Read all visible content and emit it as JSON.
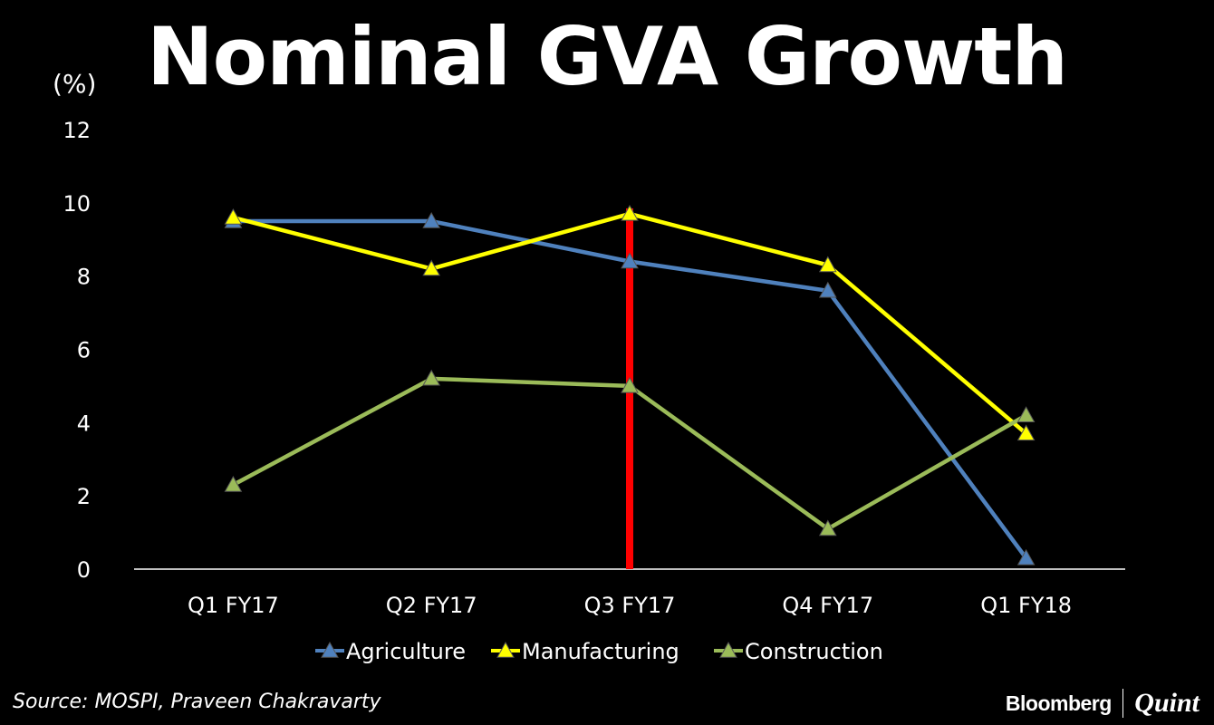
{
  "title": "Nominal GVA Growth",
  "source": "Source: MOSPI, Praveen Chakravarty",
  "brand": {
    "primary": "Bloomberg",
    "secondary": "Quint"
  },
  "colors": {
    "background": "#000000",
    "text": "#ffffff",
    "marker_line": "#ff0000"
  },
  "chart_data": {
    "type": "line",
    "title": "Nominal GVA Growth",
    "ylabel": "(%)",
    "xlabel": "",
    "ylim": [
      0,
      12
    ],
    "yticks": [
      0,
      2,
      4,
      6,
      8,
      10,
      12
    ],
    "categories": [
      "Q1 FY17",
      "Q2 FY17",
      "Q3 FY17",
      "Q4 FY17",
      "Q1 FY18"
    ],
    "legend_position": "bottom",
    "grid": false,
    "series": [
      {
        "name": "Agriculture",
        "color": "#4f81bd",
        "values": [
          9.5,
          9.5,
          8.4,
          7.6,
          0.3
        ]
      },
      {
        "name": "Manufacturing",
        "color": "#ffff00",
        "values": [
          9.6,
          8.2,
          9.7,
          8.3,
          3.7
        ]
      },
      {
        "name": "Construction",
        "color": "#9bbb59",
        "values": [
          2.3,
          5.2,
          5.0,
          1.1,
          4.2
        ]
      }
    ],
    "vertical_marker": {
      "category": "Q3 FY17",
      "color": "#ff0000"
    }
  }
}
